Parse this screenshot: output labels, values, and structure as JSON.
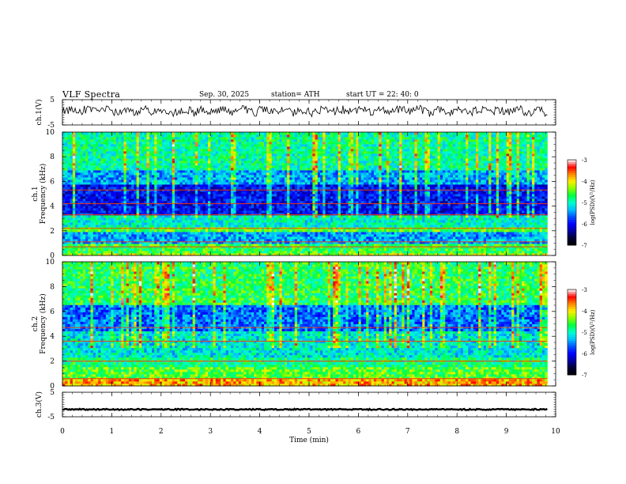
{
  "header": {
    "title": "VLF  Spectra",
    "date": "Sep. 30, 2025",
    "station": "station= ATH",
    "start": "start  UT  =    22: 40: 0"
  },
  "colors": {
    "spectral_scale": [
      "#000000",
      "#000033",
      "#0000a0",
      "#0000ff",
      "#0050ff",
      "#00bfff",
      "#00ffcc",
      "#00ff44",
      "#88ff00",
      "#ffee00",
      "#ff8800",
      "#ff0000",
      "#ffffff"
    ]
  },
  "chart_data": [
    {
      "type": "line",
      "panel": "ch1-waveform",
      "ylabel": "ch.1(V)",
      "ylim": [
        -5,
        5
      ],
      "yticks": [
        "5",
        "-5"
      ],
      "x": [
        0,
        9.83
      ],
      "level": 0.5,
      "series": [
        {
          "values_summary": "noisy trace around 0 V, amplitude about ±2 V"
        }
      ]
    },
    {
      "type": "heatmap",
      "panel": "ch1-spectrogram",
      "ylabel": "ch.1\nFrequency (kHz)",
      "ylim": [
        0,
        10
      ],
      "yticks": [
        "0",
        "2",
        "4",
        "6",
        "8",
        "10"
      ],
      "xlim": [
        0,
        9.83
      ],
      "colorbar": {
        "label": "log(PSD)(V²/Hz)",
        "range": [
          -7,
          -3
        ],
        "ticks": [
          "-3",
          "-4",
          "-5",
          "-6",
          "-7"
        ]
      },
      "bands": [
        {
          "from": 0.0,
          "to": 0.2,
          "level": -4.2
        },
        {
          "from": 0.2,
          "to": 1.0,
          "level": -4.6
        },
        {
          "from": 1.0,
          "to": 2.0,
          "level": -5.4
        },
        {
          "from": 2.0,
          "to": 2.3,
          "level": -4.5
        },
        {
          "from": 2.3,
          "to": 3.2,
          "level": -5.0
        },
        {
          "from": 3.2,
          "to": 5.8,
          "level": -6.0
        },
        {
          "from": 5.8,
          "to": 7.0,
          "level": -5.4
        },
        {
          "from": 7.0,
          "to": 10.0,
          "level": -4.9
        }
      ],
      "tones_khz": [
        0.7,
        1.1,
        2.2,
        3.3,
        4.2,
        5.3
      ]
    },
    {
      "type": "heatmap",
      "panel": "ch2-spectrogram",
      "ylabel": "ch.2\nFrequency (kHz)",
      "ylim": [
        0,
        10
      ],
      "yticks": [
        "0",
        "2",
        "4",
        "6",
        "8",
        "10"
      ],
      "xlim": [
        0,
        9.83
      ],
      "colorbar": {
        "label": "log(PSD)(V²/Hz)",
        "range": [
          -7,
          -3
        ],
        "ticks": [
          "-3",
          "-4",
          "-5",
          "-6",
          "-7"
        ]
      },
      "bands": [
        {
          "from": 0.0,
          "to": 0.6,
          "level": -3.8
        },
        {
          "from": 0.6,
          "to": 1.5,
          "level": -4.5
        },
        {
          "from": 1.5,
          "to": 2.4,
          "level": -4.8
        },
        {
          "from": 2.4,
          "to": 4.5,
          "level": -5.1
        },
        {
          "from": 4.5,
          "to": 6.5,
          "level": -5.6
        },
        {
          "from": 6.5,
          "to": 10.0,
          "level": -4.7
        }
      ],
      "tones_khz": [
        0.6,
        2.0,
        3.6,
        4.7
      ]
    },
    {
      "type": "line",
      "panel": "ch3-waveform",
      "ylabel": "ch.3(V)",
      "ylim": [
        -5,
        5
      ],
      "yticks": [
        "5",
        "-5"
      ],
      "x": [
        0,
        9.83
      ],
      "level": -2.0,
      "series": [
        {
          "values_summary": "flat trace at about -2 V"
        }
      ]
    }
  ],
  "x_axis": {
    "label": "Time  (min)",
    "ticks": [
      "0",
      "1",
      "2",
      "3",
      "4",
      "5",
      "6",
      "7",
      "8",
      "9",
      "10"
    ],
    "xlim": [
      0,
      10
    ]
  }
}
